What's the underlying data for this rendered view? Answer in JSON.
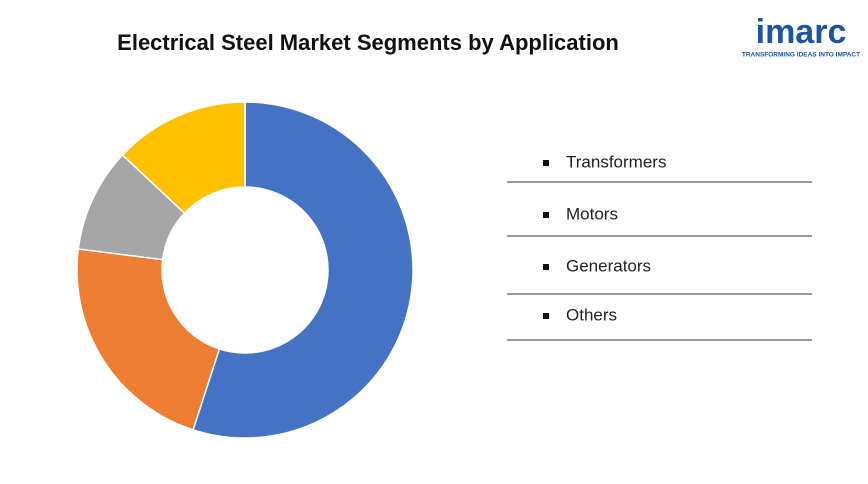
{
  "chart_data": {
    "type": "donut",
    "title": "Electrical Steel Market Segments by Application",
    "categories": [
      "Transformers",
      "Motors",
      "Generators",
      "Others"
    ],
    "values": [
      55,
      22,
      10,
      13
    ],
    "colors": [
      "#4472c4",
      "#ed7d31",
      "#a5a5a5",
      "#ffc000"
    ]
  },
  "logo": {
    "name": "imarc",
    "tagline": "TRANSFORMING IDEAS INTO IMPACT"
  }
}
